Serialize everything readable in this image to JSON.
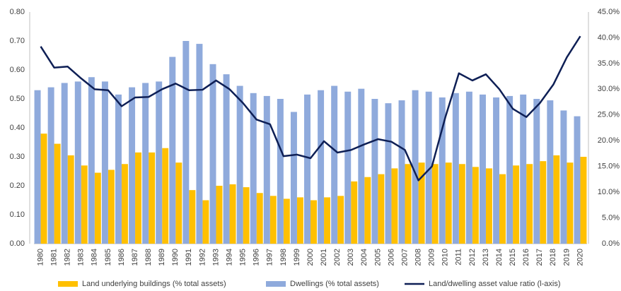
{
  "chart_data": {
    "type": "bar",
    "categories": [
      "1980",
      "1981",
      "1982",
      "1983",
      "1984",
      "1985",
      "1986",
      "1987",
      "1988",
      "1989",
      "1990",
      "1991",
      "1992",
      "1993",
      "1994",
      "1995",
      "1996",
      "1997",
      "1998",
      "1999",
      "2000",
      "2001",
      "2002",
      "2003",
      "2004",
      "2005",
      "2006",
      "2007",
      "2008",
      "2009",
      "2010",
      "2011",
      "2012",
      "2013",
      "2014",
      "2015",
      "2016",
      "2017",
      "2018",
      "2019",
      "2020"
    ],
    "series": [
      {
        "name": "Land underlying buildings (% total assets)",
        "color": "#FFC000",
        "type": "bar",
        "values": [
          0.38,
          0.345,
          0.305,
          0.27,
          0.245,
          0.255,
          0.275,
          0.315,
          0.315,
          0.33,
          0.28,
          0.185,
          0.15,
          0.2,
          0.205,
          0.195,
          0.175,
          0.165,
          0.155,
          0.16,
          0.15,
          0.16,
          0.165,
          0.215,
          0.23,
          0.24,
          0.26,
          0.275,
          0.28,
          0.275,
          0.28,
          0.275,
          0.265,
          0.26,
          0.24,
          0.27,
          0.275,
          0.285,
          0.305,
          0.28,
          0.3
        ]
      },
      {
        "name": "Dwellings (% total assets)",
        "color": "#8FAADC",
        "type": "bar",
        "values": [
          0.53,
          0.54,
          0.555,
          0.56,
          0.575,
          0.56,
          0.515,
          0.54,
          0.555,
          0.56,
          0.645,
          0.7,
          0.69,
          0.62,
          0.585,
          0.545,
          0.52,
          0.51,
          0.5,
          0.455,
          0.515,
          0.53,
          0.545,
          0.525,
          0.535,
          0.5,
          0.485,
          0.495,
          0.53,
          0.525,
          0.505,
          0.52,
          0.525,
          0.515,
          0.505,
          0.51,
          0.515,
          0.5,
          0.495,
          0.46,
          0.44
        ]
      },
      {
        "name": "Land/dwelling asset value ratio (l-axis)",
        "color": "#0E1F55",
        "type": "line",
        "axis": "y2",
        "values": [
          38.3,
          34.2,
          34.4,
          32.1,
          30.0,
          29.8,
          26.7,
          28.4,
          28.5,
          30.0,
          31.1,
          29.8,
          29.9,
          31.7,
          30.0,
          27.3,
          24.1,
          23.2,
          17.0,
          17.3,
          16.6,
          19.9,
          17.7,
          18.2,
          19.3,
          20.3,
          19.8,
          18.2,
          12.3,
          15.0,
          24.6,
          33.1,
          31.7,
          32.9,
          30.0,
          26.2,
          24.6,
          27.3,
          30.9,
          36.2,
          40.3
        ]
      }
    ],
    "ylim": [
      0,
      0.8
    ],
    "yticks": [
      {
        "value": 0,
        "label": "0.00"
      },
      {
        "value": 0.1,
        "label": "0.10"
      },
      {
        "value": 0.2,
        "label": "0.20"
      },
      {
        "value": 0.3,
        "label": "0.30"
      },
      {
        "value": 0.4,
        "label": "0.40"
      },
      {
        "value": 0.5,
        "label": "0.50"
      },
      {
        "value": 0.6,
        "label": "0.60"
      },
      {
        "value": 0.7,
        "label": "0.70"
      },
      {
        "value": 0.8,
        "label": "0.80"
      }
    ],
    "y2lim": [
      0,
      45
    ],
    "y2ticks": [
      {
        "value": 0,
        "label": "0.0%"
      },
      {
        "value": 5,
        "label": "5.0%"
      },
      {
        "value": 10,
        "label": "10.0%"
      },
      {
        "value": 15,
        "label": "15.0%"
      },
      {
        "value": 20,
        "label": "20.0%"
      },
      {
        "value": 25,
        "label": "25.0%"
      },
      {
        "value": 30,
        "label": "30.0%"
      },
      {
        "value": 35,
        "label": "35.0%"
      },
      {
        "value": 40,
        "label": "40.0%"
      },
      {
        "value": 45,
        "label": "45.0%"
      }
    ],
    "grid": false,
    "legend": "bottom"
  }
}
